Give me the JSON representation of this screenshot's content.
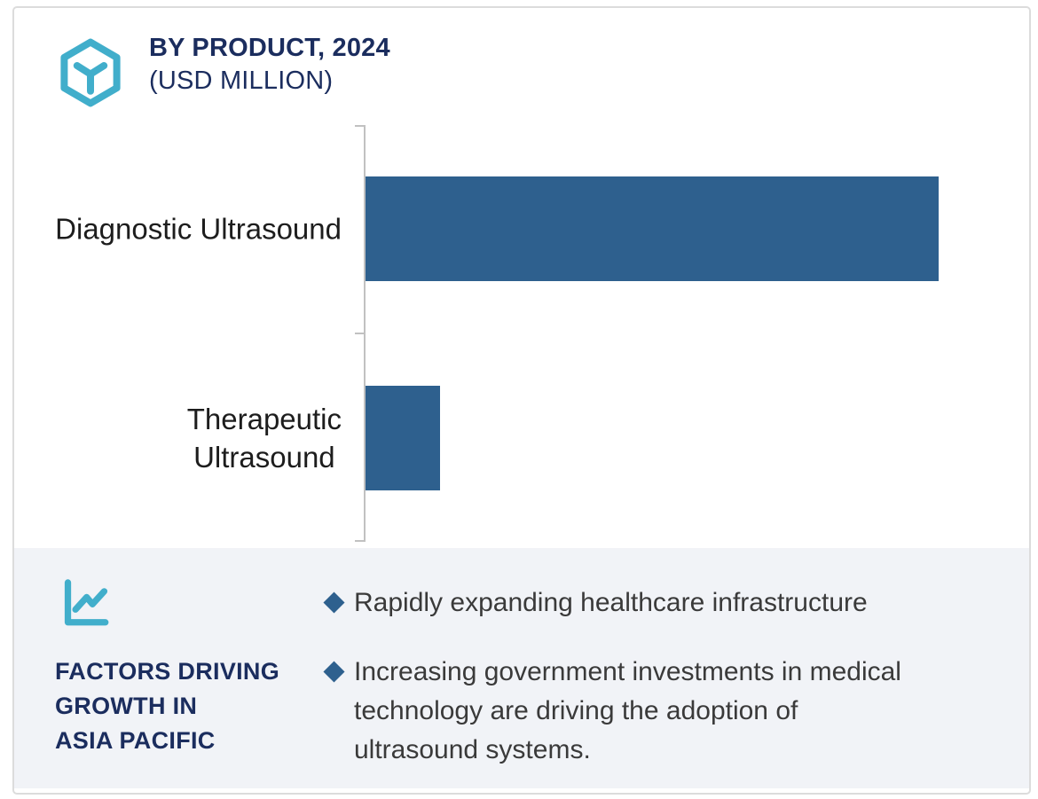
{
  "header": {
    "icon": "cube-hexagon-icon",
    "title": "BY PRODUCT, 2024",
    "subtitle": "(USD MILLION)"
  },
  "chart_data": {
    "type": "bar",
    "orientation": "horizontal",
    "title": "BY PRODUCT, 2024 (USD MILLION)",
    "unit": "USD Million",
    "categories": [
      "Diagnostic Ultrasound",
      "Therapeutic Ultrasound"
    ],
    "category_labels": [
      "Diagnostic Ultrasound",
      "Therapeutic\nUltrasound"
    ],
    "values": [
      100,
      13
    ],
    "value_scale": "relative (no numeric axis or data labels shown in chart)",
    "axis_max": 115.8,
    "value_labels_shown": false,
    "gridlines": false,
    "bar_color": "#2e608e",
    "axis_color": "#c1c1c1"
  },
  "factors_panel": {
    "icon": "line-chart-icon",
    "heading": "FACTORS DRIVING\nGROWTH IN\nASIA PACIFIC",
    "bullets": [
      "Rapidly expanding healthcare infrastructure",
      "Increasing government investments in medical\ntechnology are driving the adoption of\nultrasound systems."
    ]
  },
  "colors": {
    "navy": "#1b2d5e",
    "teal": "#41aecb",
    "steel_blue": "#2e608e",
    "panel_bg": "#f1f3f7",
    "body_text": "#3a3a3a",
    "frame_border": "#dcdcdc"
  }
}
